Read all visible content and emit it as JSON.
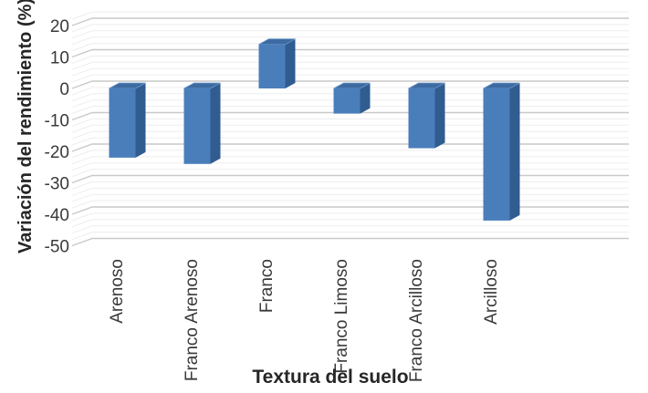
{
  "chart_data": {
    "type": "bar",
    "style": "3d-column",
    "title": "",
    "xlabel": "Textura del suelo",
    "ylabel": "Variación del rendimiento (%)",
    "categories": [
      "Arenoso",
      "Franco Arenoso",
      "Franco",
      "Franco Limoso",
      "Franco Arcilloso",
      "Arcilloso"
    ],
    "values": [
      -22,
      -24,
      14,
      -8,
      -19,
      -42
    ],
    "ylim": [
      -50,
      22
    ],
    "yticks": [
      20,
      10,
      0,
      -10,
      -20,
      -30,
      -40,
      -50
    ],
    "minor_gridline_step": 2,
    "major_gridline_step": 10,
    "grid": "on",
    "legend": "none",
    "colors": {
      "bar_front": "#4A7EBB",
      "bar_side": "#305C90",
      "bar_top": "#3D6BA1",
      "bar_top_highlight": "#6E99CC",
      "gridline_minor": "#EDEDED",
      "gridline_major": "#C9C9C9",
      "text": "#3A3A3A",
      "background": "#FFFFFF"
    }
  }
}
